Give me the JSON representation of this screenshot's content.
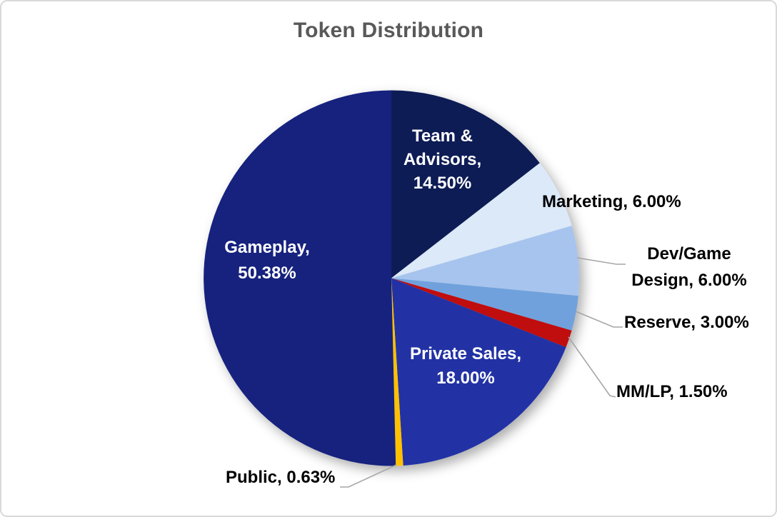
{
  "chart_data": {
    "type": "pie",
    "title": "Token Distribution",
    "title_color": "#595959",
    "legend": "none",
    "start_angle": "12 o'clock",
    "direction": "clockwise",
    "unit": "%",
    "categories": [
      "Team & Advisors",
      "Marketing",
      "Dev/Game Design",
      "Reserve",
      "MM/LP",
      "Private Sales",
      "Public",
      "Gameplay"
    ],
    "values": [
      14.5,
      6.0,
      6.0,
      3.0,
      1.5,
      18.0,
      0.63,
      50.38
    ],
    "leader_line_color": "#a6a6a6",
    "slices": [
      {
        "name": "Team & Advisors",
        "value": 14.5,
        "color": "#0E1D55",
        "label": "Team & Advisors, 14.50%",
        "lines": [
          "Team &",
          "Advisors,",
          "14.50%"
        ],
        "label_placement": "inside",
        "label_color": "#ffffff",
        "leader_line": false
      },
      {
        "name": "Marketing",
        "value": 6.0,
        "color": "#DCE9F8",
        "label": "Marketing, 6.00%",
        "lines": [
          "Marketing, 6.00%"
        ],
        "label_placement": "outside",
        "label_color": "#000000",
        "leader_line": false
      },
      {
        "name": "Dev/Game Design",
        "value": 6.0,
        "color": "#A6C4EE",
        "label": "Dev/Game Design, 6.00%",
        "lines": [
          "Dev/Game",
          "Design, 6.00%"
        ],
        "label_placement": "outside",
        "label_color": "#000000",
        "leader_line": true
      },
      {
        "name": "Reserve",
        "value": 3.0,
        "color": "#6FA1DC",
        "label": "Reserve, 3.00%",
        "lines": [
          "Reserve, 3.00%"
        ],
        "label_placement": "outside",
        "label_color": "#000000",
        "leader_line": true
      },
      {
        "name": "MM/LP",
        "value": 1.5,
        "color": "#C00D10",
        "label": "MM/LP, 1.50%",
        "lines": [
          "MM/LP, 1.50%"
        ],
        "label_placement": "outside",
        "label_color": "#000000",
        "leader_line": true
      },
      {
        "name": "Private Sales",
        "value": 18.0,
        "color": "#2033A5",
        "label": "Private Sales, 18.00%",
        "lines": [
          "Private Sales,",
          "18.00%"
        ],
        "label_placement": "inside",
        "label_color": "#ffffff",
        "leader_line": false
      },
      {
        "name": "Public",
        "value": 0.63,
        "color": "#FFC000",
        "label": "Public, 0.63%",
        "lines": [
          "Public, 0.63%"
        ],
        "label_placement": "outside",
        "label_color": "#000000",
        "leader_line": true
      },
      {
        "name": "Gameplay",
        "value": 50.38,
        "color": "#14237E",
        "label": "Gameplay, 50.38%",
        "lines": [
          "Gameplay,",
          "50.38%"
        ],
        "label_placement": "inside",
        "label_color": "#ffffff",
        "leader_line": false
      }
    ]
  }
}
